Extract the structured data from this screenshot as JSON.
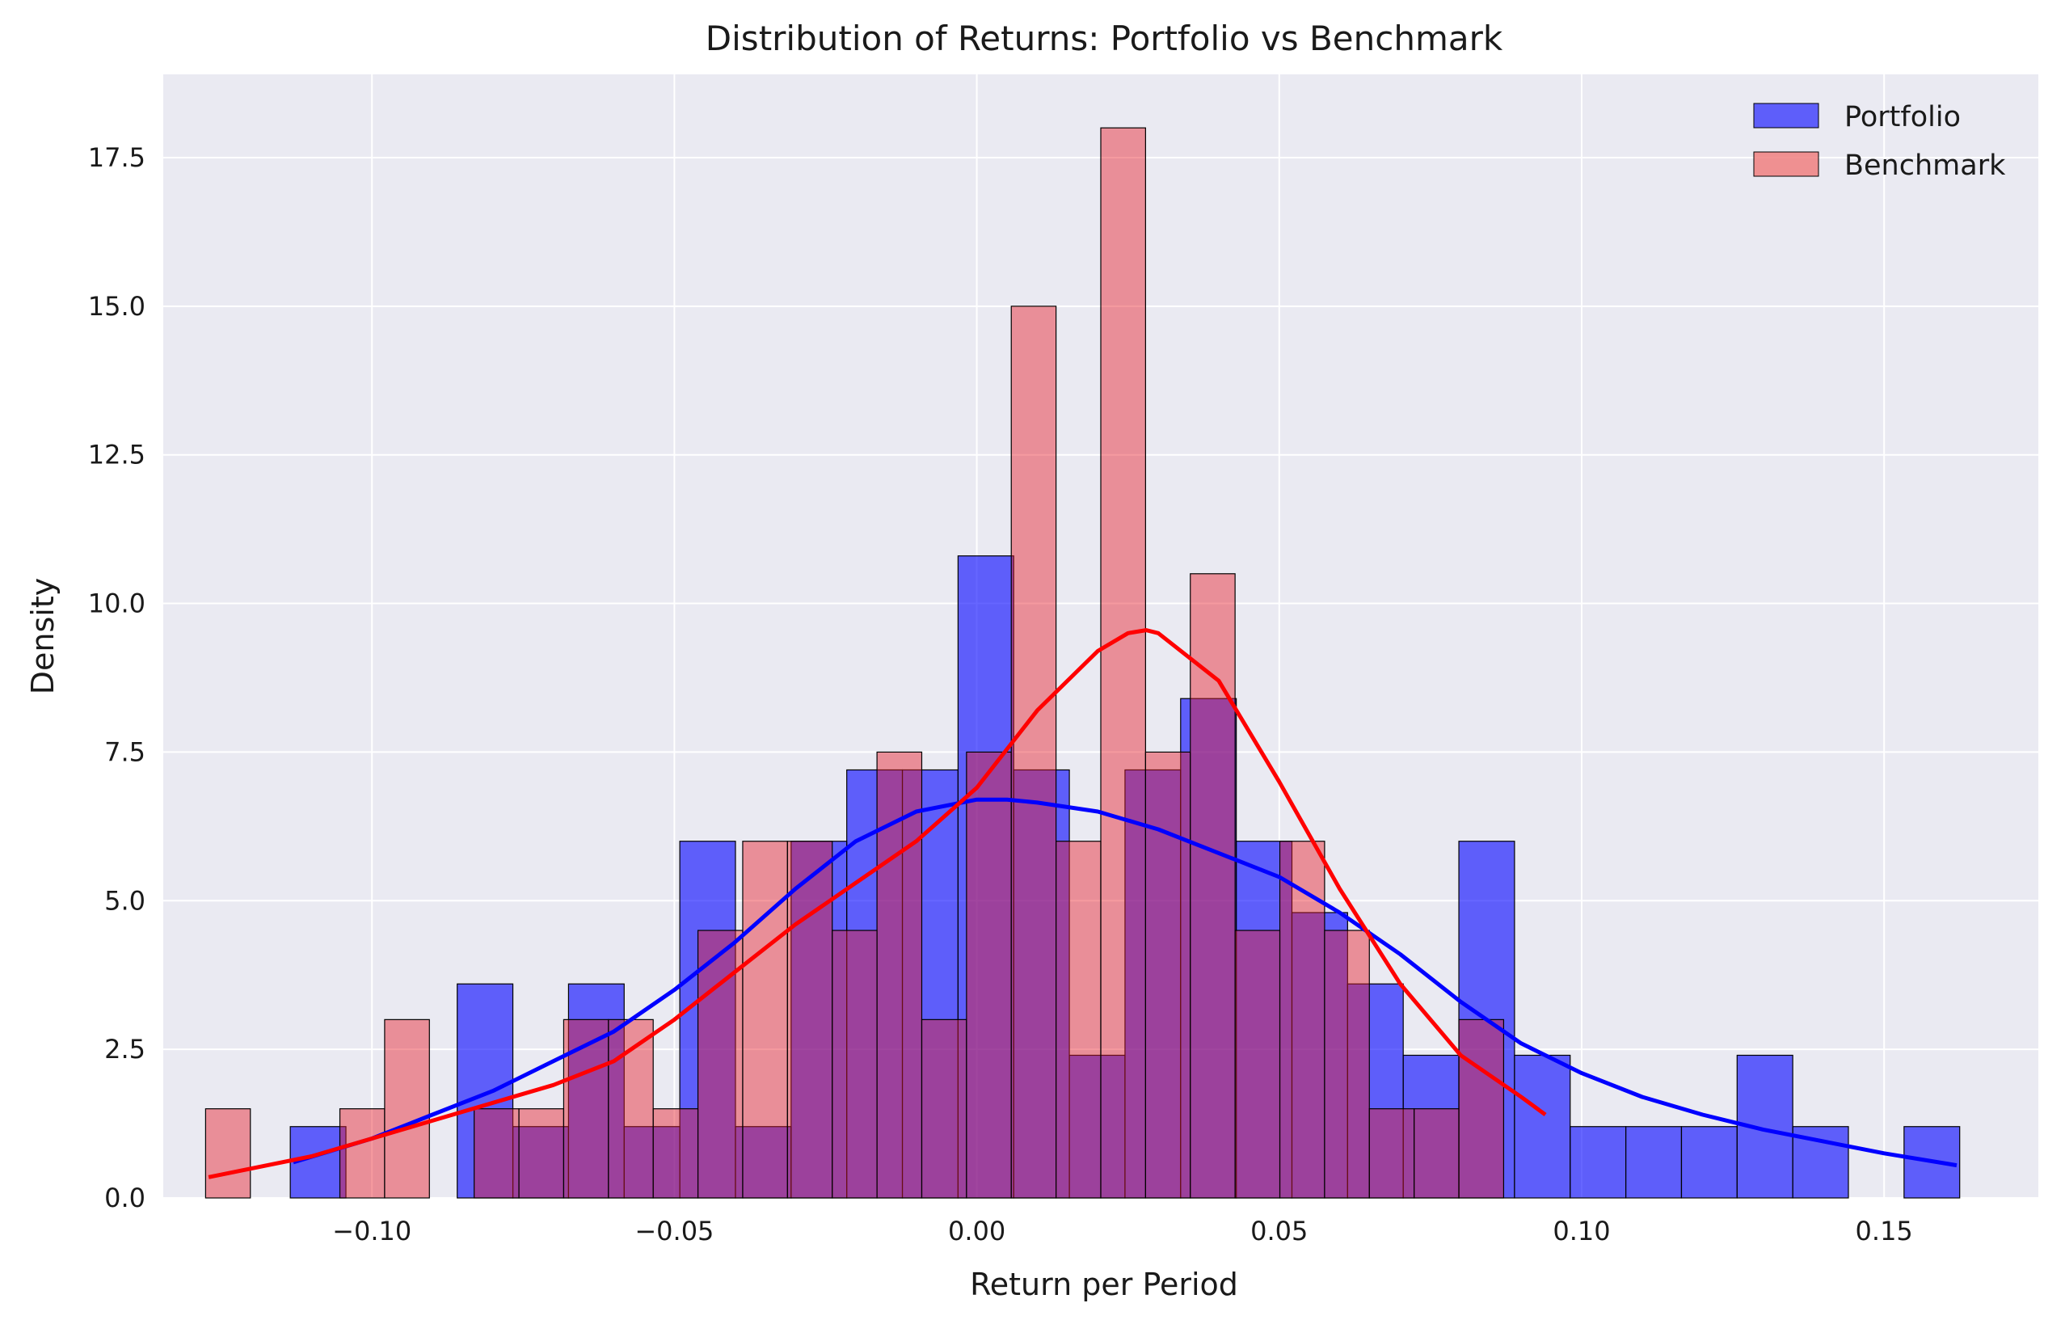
{
  "chart_data": {
    "type": "bar",
    "subtype": "histogram-with-kde",
    "title": "Distribution of Returns: Portfolio vs Benchmark",
    "xlabel": "Return per Period",
    "ylabel": "Density",
    "xlim": [
      -0.1345,
      0.1755
    ],
    "ylim": [
      0,
      18.9
    ],
    "xticks": [
      -0.1,
      -0.05,
      0.0,
      0.05,
      0.1,
      0.15
    ],
    "xtick_labels": [
      "−0.10",
      "−0.05",
      "0.00",
      "0.05",
      "0.10",
      "0.15"
    ],
    "yticks": [
      0.0,
      2.5,
      5.0,
      7.5,
      10.0,
      12.5,
      15.0,
      17.5
    ],
    "ytick_labels": [
      "0.0",
      "2.5",
      "5.0",
      "7.5",
      "10.0",
      "12.5",
      "15.0",
      "17.5"
    ],
    "grid": true,
    "legend_position": "top-right",
    "series": [
      {
        "name": "Portfolio",
        "color": "#0000ff",
        "bin_start": -0.1135,
        "bin_width": 0.0092,
        "densities": [
          1.2,
          0,
          0,
          3.6,
          1.2,
          3.6,
          1.2,
          6.0,
          1.2,
          6.0,
          7.2,
          7.2,
          10.8,
          7.2,
          2.4,
          7.2,
          8.4,
          6.0,
          4.8,
          3.6,
          2.4,
          6.0,
          2.4,
          1.2,
          1.2,
          1.2,
          2.4,
          1.2,
          0,
          1.2
        ],
        "kde_x": [
          -0.113,
          -0.1,
          -0.09,
          -0.08,
          -0.07,
          -0.06,
          -0.05,
          -0.04,
          -0.03,
          -0.02,
          -0.01,
          0.0,
          0.005,
          0.01,
          0.02,
          0.03,
          0.04,
          0.05,
          0.06,
          0.07,
          0.08,
          0.09,
          0.1,
          0.11,
          0.12,
          0.13,
          0.14,
          0.15,
          0.162
        ],
        "kde_y": [
          0.6,
          1.0,
          1.4,
          1.8,
          2.3,
          2.8,
          3.5,
          4.3,
          5.2,
          6.0,
          6.5,
          6.7,
          6.7,
          6.65,
          6.5,
          6.2,
          5.8,
          5.4,
          4.8,
          4.1,
          3.3,
          2.6,
          2.1,
          1.7,
          1.4,
          1.15,
          0.95,
          0.75,
          0.55
        ]
      },
      {
        "name": "Benchmark",
        "color": "#f08080",
        "bin_start": -0.1275,
        "bin_width": 0.0074,
        "densities": [
          1.5,
          0,
          0,
          1.5,
          3.0,
          0,
          1.5,
          1.5,
          3.0,
          3.0,
          1.5,
          4.5,
          6.0,
          6.0,
          4.5,
          7.5,
          3.0,
          7.5,
          15.0,
          6.0,
          18.0,
          7.5,
          10.5,
          4.5,
          6.0,
          4.5,
          1.5,
          1.5,
          3.0
        ],
        "kde_x": [
          -0.127,
          -0.11,
          -0.1,
          -0.09,
          -0.08,
          -0.07,
          -0.06,
          -0.05,
          -0.04,
          -0.03,
          -0.02,
          -0.01,
          0.0,
          0.01,
          0.02,
          0.025,
          0.028,
          0.03,
          0.04,
          0.05,
          0.06,
          0.07,
          0.08,
          0.09,
          0.094
        ],
        "kde_y": [
          0.35,
          0.7,
          1.0,
          1.3,
          1.6,
          1.9,
          2.3,
          3.0,
          3.8,
          4.6,
          5.3,
          6.0,
          6.9,
          8.2,
          9.2,
          9.5,
          9.55,
          9.5,
          8.7,
          7.0,
          5.2,
          3.6,
          2.4,
          1.7,
          1.4
        ]
      }
    ]
  }
}
